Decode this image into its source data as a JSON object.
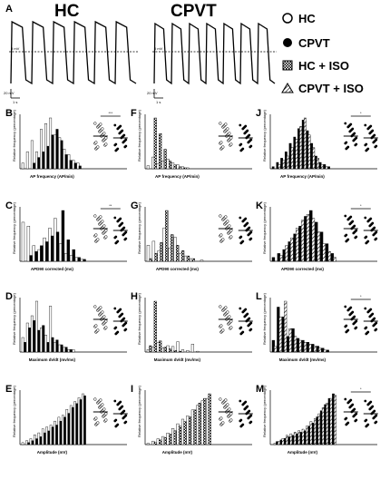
{
  "figure": {
    "header_hc": "HC",
    "header_cpvt": "CPVT",
    "panel_a": "A",
    "zero_mv_hc": "0 mV",
    "zero_mv_cpvt": "0 mV",
    "scale_mv_hc": "20 mV",
    "scale_mv_cpvt": "20 mV",
    "scale_s_hc": "1 s",
    "scale_s_cpvt": "1 s",
    "legend": [
      {
        "label": "HC",
        "symbol": "open-circle-icon"
      },
      {
        "label": "CPVT",
        "symbol": "filled-circle-icon"
      },
      {
        "label": "HC + ISO",
        "symbol": "hatched-square-icon"
      },
      {
        "label": "CPVT + ISO",
        "symbol": "half-filled-triangle-icon"
      }
    ],
    "ylabel": "Relative frequency (percentage)",
    "colors": {
      "ink": "#000000",
      "open_bar": "#ffffff",
      "grey_bar": "#b0b0b0",
      "hatch": "#000000"
    }
  },
  "chart_data": [
    {
      "panel": "B",
      "type": "bar",
      "xlabel": "AP frequency (AP/min)",
      "significance": "***",
      "series": [
        {
          "name": "HC",
          "values": [
            2,
            6,
            10,
            6,
            14,
            16,
            18,
            12,
            11,
            7,
            5,
            3,
            2,
            0
          ]
        },
        {
          "name": "CPVT",
          "values": [
            0,
            0,
            2,
            4,
            6,
            8,
            12,
            14,
            10,
            5,
            3,
            2,
            1,
            0
          ]
        }
      ]
    },
    {
      "panel": "C",
      "type": "bar",
      "xlabel": "APD90 corrected (ms)",
      "significance": "**",
      "series": [
        {
          "name": "HC",
          "values": [
            20,
            18,
            8,
            6,
            12,
            17,
            22,
            9,
            4,
            3,
            2,
            1
          ]
        },
        {
          "name": "CPVT",
          "values": [
            0,
            3,
            5,
            8,
            10,
            13,
            15,
            26,
            11,
            6,
            2,
            1
          ]
        }
      ]
    },
    {
      "panel": "D",
      "type": "bar",
      "xlabel": "Maximum dv/dt (mv/ms)",
      "significance": "",
      "series": [
        {
          "name": "HC",
          "values": [
            6,
            12,
            15,
            21,
            10,
            7,
            19,
            4,
            3,
            2,
            1,
            1,
            0,
            0
          ]
        },
        {
          "name": "CPVT",
          "values": [
            4,
            10,
            13,
            9,
            11,
            4,
            6,
            5,
            3,
            2,
            1,
            0,
            0,
            0
          ]
        }
      ]
    },
    {
      "panel": "E",
      "type": "bar",
      "xlabel": "Amplitude (mV)",
      "significance": "",
      "series": [
        {
          "name": "HC",
          "values": [
            1,
            2,
            3,
            5,
            6,
            8,
            9,
            10,
            12,
            14,
            15,
            18,
            20,
            22,
            24,
            26
          ]
        },
        {
          "name": "CPVT",
          "values": [
            0,
            1,
            2,
            3,
            4,
            6,
            7,
            9,
            10,
            12,
            14,
            16,
            19,
            21,
            23,
            25
          ]
        }
      ]
    },
    {
      "panel": "F",
      "type": "bar",
      "xlabel": "AP frequency (AP/min)",
      "significance": "",
      "series": [
        {
          "name": "HC",
          "values": [
            3,
            12,
            5,
            8,
            10,
            6,
            4,
            2,
            1,
            0,
            0,
            0,
            0
          ]
        },
        {
          "name": "HC + ISO",
          "values": [
            0,
            52,
            36,
            20,
            8,
            4,
            2,
            1,
            0,
            0,
            0,
            0,
            0
          ]
        }
      ]
    },
    {
      "panel": "G",
      "type": "bar",
      "xlabel": "APD90 corrected (ms)",
      "significance": "",
      "series": [
        {
          "name": "HC",
          "values": [
            12,
            15,
            8,
            25,
            10,
            18,
            6,
            4,
            2,
            0,
            1,
            0
          ]
        },
        {
          "name": "HC + ISO",
          "values": [
            2,
            6,
            14,
            38,
            20,
            12,
            8,
            4,
            2,
            0,
            0,
            0
          ]
        }
      ]
    },
    {
      "panel": "H",
      "type": "bar",
      "xlabel": "Maximum dv/dt (mv/ms)",
      "significance": "",
      "series": [
        {
          "name": "HC",
          "values": [
            3,
            6,
            12,
            5,
            8,
            7,
            13,
            3,
            2,
            10,
            1,
            0,
            0
          ]
        },
        {
          "name": "HC + ISO",
          "values": [
            8,
            64,
            14,
            6,
            4,
            2,
            1,
            0,
            0,
            0,
            0,
            0,
            0
          ]
        }
      ]
    },
    {
      "panel": "I",
      "type": "bar",
      "xlabel": "Amplitude (mV)",
      "significance": "",
      "series": [
        {
          "name": "HC",
          "values": [
            1,
            3,
            5,
            7,
            10,
            14,
            18,
            22,
            25,
            30,
            34,
            38,
            40
          ]
        },
        {
          "name": "HC + ISO",
          "values": [
            0,
            2,
            4,
            6,
            9,
            12,
            16,
            20,
            24,
            30,
            36,
            40,
            44
          ]
        }
      ]
    },
    {
      "panel": "J",
      "type": "bar",
      "xlabel": "AP frequency (AP/min)",
      "significance": "*",
      "series": [
        {
          "name": "CPVT",
          "values": [
            1,
            3,
            5,
            8,
            12,
            15,
            19,
            23,
            18,
            12,
            6,
            3,
            2,
            1,
            0
          ]
        },
        {
          "name": "CPVT + ISO",
          "values": [
            0,
            2,
            4,
            6,
            10,
            14,
            20,
            24,
            16,
            10,
            5,
            2,
            1,
            0,
            0
          ]
        }
      ]
    },
    {
      "panel": "K",
      "type": "bar",
      "xlabel": "APD90 corrected (ms)",
      "significance": "*",
      "series": [
        {
          "name": "CPVT",
          "values": [
            2,
            4,
            6,
            10,
            14,
            18,
            23,
            26,
            20,
            15,
            9,
            4
          ]
        },
        {
          "name": "CPVT + ISO",
          "values": [
            0,
            3,
            8,
            12,
            17,
            21,
            24,
            22,
            15,
            9,
            5,
            2
          ]
        }
      ]
    },
    {
      "panel": "L",
      "type": "bar",
      "xlabel": "Maximum dv/dt (mv/ms)",
      "significance": "*",
      "series": [
        {
          "name": "CPVT",
          "values": [
            6,
            23,
            18,
            8,
            12,
            7,
            6,
            5,
            4,
            3,
            2,
            1,
            0
          ]
        },
        {
          "name": "CPVT + ISO",
          "values": [
            3,
            18,
            26,
            12,
            8,
            6,
            5,
            4,
            3,
            2,
            1,
            0,
            0
          ]
        }
      ]
    },
    {
      "panel": "M",
      "type": "bar",
      "xlabel": "Amplitude (mV)",
      "significance": "*",
      "series": [
        {
          "name": "CPVT",
          "values": [
            0,
            2,
            3,
            4,
            5,
            6,
            7,
            8,
            9,
            12,
            14,
            18,
            22,
            26,
            30,
            33
          ]
        },
        {
          "name": "CPVT + ISO",
          "values": [
            1,
            2,
            4,
            6,
            7,
            8,
            9,
            10,
            12,
            15,
            17,
            20,
            24,
            27,
            30,
            32
          ]
        }
      ]
    }
  ]
}
